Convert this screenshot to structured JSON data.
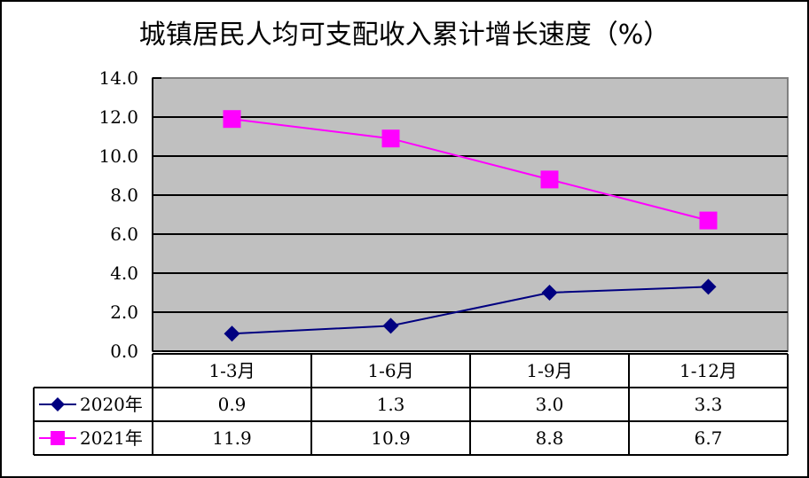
{
  "title": "城镇居民人均可支配收入累计增长速度（%）",
  "chart_data": {
    "type": "line",
    "title": "城镇居民人均可支配收入累计增长速度（%）",
    "xlabel": "",
    "ylabel": "",
    "categories": [
      "1-3月",
      "1-6月",
      "1-9月",
      "1-12月"
    ],
    "series": [
      {
        "name": "2020年",
        "values": [
          0.9,
          1.3,
          3.0,
          3.3
        ],
        "color": "#000080",
        "marker": "diamond"
      },
      {
        "name": "2021年",
        "values": [
          11.9,
          10.9,
          8.8,
          6.7
        ],
        "color": "#FF00FF",
        "marker": "square"
      }
    ],
    "ylim": [
      0,
      14
    ],
    "yticks": [
      "0.0",
      "2.0",
      "4.0",
      "6.0",
      "8.0",
      "10.0",
      "12.0",
      "14.0"
    ],
    "grid": true,
    "plot_background": "#C0C0C0",
    "legend_position": "data-table"
  },
  "table": {
    "headers": [
      "1-3月",
      "1-6月",
      "1-9月",
      "1-12月"
    ],
    "rows": [
      {
        "label": "2020年",
        "values": [
          "0.9",
          "1.3",
          "3.0",
          "3.3"
        ]
      },
      {
        "label": "2021年",
        "values": [
          "11.9",
          "10.9",
          "8.8",
          "6.7"
        ]
      }
    ]
  }
}
